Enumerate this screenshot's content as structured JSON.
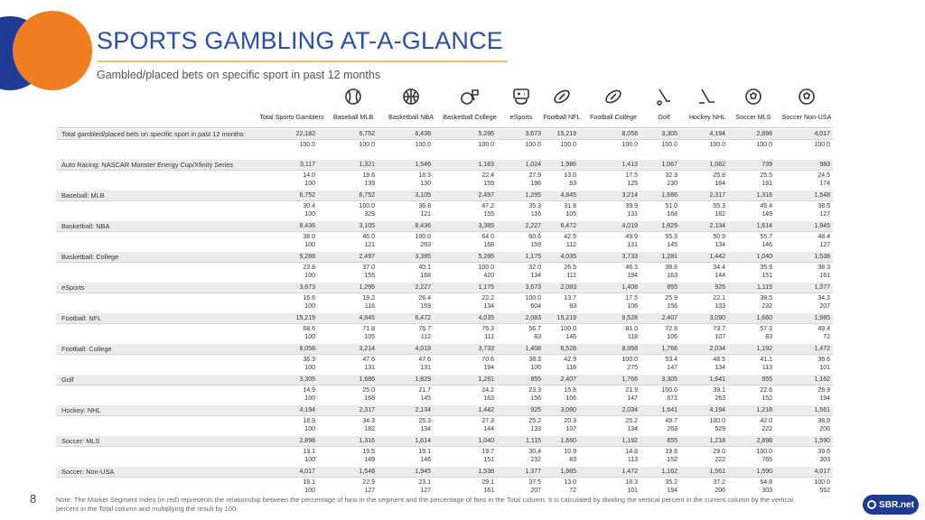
{
  "header": {
    "title": "SPORTS GAMBLING AT-A-GLANCE",
    "subtitle": "Gambled/placed bets on specific sport in past 12 months"
  },
  "columns": [
    {
      "label": "Total Sports Gamblers",
      "icon": ""
    },
    {
      "label": "Baseball MLB",
      "icon": "baseball-icon"
    },
    {
      "label": "Basketball NBA",
      "icon": "basketball-icon"
    },
    {
      "label": "Basketball College",
      "icon": "basketball-hoop-icon"
    },
    {
      "label": "eSports",
      "icon": "esports-controller-icon"
    },
    {
      "label": "Football NFL",
      "icon": "football-icon"
    },
    {
      "label": "Football College",
      "icon": "football-icon"
    },
    {
      "label": "Golf",
      "icon": "golf-icon"
    },
    {
      "label": "Hockey NHL",
      "icon": "hockey-stick-icon"
    },
    {
      "label": "Soccer MLS",
      "icon": "soccer-ball-icon"
    },
    {
      "label": "Soccer Non-USA",
      "icon": "soccer-ball-icon"
    }
  ],
  "rows": [
    {
      "label": "Total gambled/placed bets on specific sport in past 12 months",
      "counts": [
        "22,182",
        "6,752",
        "8,436",
        "5,286",
        "3,673",
        "15,219",
        "8,058",
        "3,305",
        "4,194",
        "2,898",
        "4,017"
      ],
      "pct": [
        "100.0",
        "100.0",
        "100.0",
        "100.0",
        "100.0",
        "100.0",
        "100.0",
        "100.0",
        "100.0",
        "100.0",
        "100.0"
      ],
      "index": []
    },
    {
      "label": "Auto Racing: NASCAR Monster Energy Cup/Xfinity Series",
      "counts": [
        "3,117",
        "1,321",
        "1,546",
        "1,183",
        "1,024",
        "1,986",
        "1,413",
        "1,067",
        "1,082",
        "739",
        "983"
      ],
      "pct": [
        "14.0",
        "19.6",
        "18.3",
        "22.4",
        "27.9",
        "13.0",
        "17.5",
        "32.3",
        "25.8",
        "25.5",
        "24.5"
      ],
      "index": [
        "100",
        "139",
        "130",
        "159",
        "198",
        "93",
        "125",
        "230",
        "184",
        "181",
        "174"
      ]
    },
    {
      "label": "Baseball: MLB",
      "counts": [
        "6,752",
        "6,752",
        "3,105",
        "2,497",
        "1,295",
        "4,845",
        "3,214",
        "1,686",
        "2,317",
        "1,316",
        "1,548"
      ],
      "pct": [
        "30.4",
        "100.0",
        "36.8",
        "47.2",
        "35.3",
        "31.8",
        "39.9",
        "51.0",
        "55.3",
        "45.4",
        "38.5"
      ],
      "index": [
        "100",
        "329",
        "121",
        "155",
        "116",
        "105",
        "131",
        "168",
        "182",
        "149",
        "127"
      ]
    },
    {
      "label": "Basketball: NBA",
      "counts": [
        "8,436",
        "3,105",
        "8,436",
        "3,385",
        "2,227",
        "6,472",
        "4,019",
        "1,829",
        "2,134",
        "1,614",
        "1,945"
      ],
      "pct": [
        "38.0",
        "46.0",
        "100.0",
        "64.0",
        "60.6",
        "42.5",
        "49.9",
        "55.3",
        "50.9",
        "55.7",
        "48.4"
      ],
      "index": [
        "100",
        "121",
        "263",
        "168",
        "159",
        "112",
        "131",
        "145",
        "134",
        "146",
        "127"
      ]
    },
    {
      "label": "Basketball: College",
      "counts": [
        "5,286",
        "2,497",
        "3,385",
        "5,286",
        "1,175",
        "4,035",
        "3,733",
        "1,281",
        "1,442",
        "1,040",
        "1,538"
      ],
      "pct": [
        "23.8",
        "37.0",
        "40.1",
        "100.0",
        "32.0",
        "26.5",
        "46.3",
        "38.8",
        "34.4",
        "35.9",
        "38.3"
      ],
      "index": [
        "100",
        "155",
        "168",
        "420",
        "134",
        "111",
        "194",
        "163",
        "144",
        "151",
        "161"
      ]
    },
    {
      "label": "eSports",
      "counts": [
        "3,673",
        "1,295",
        "2,227",
        "1,175",
        "3,673",
        "2,083",
        "1,408",
        "855",
        "925",
        "1,115",
        "1,377"
      ],
      "pct": [
        "16.6",
        "19.2",
        "26.4",
        "22.2",
        "100.0",
        "13.7",
        "17.5",
        "25.9",
        "22.1",
        "38.5",
        "34.3"
      ],
      "index": [
        "100",
        "116",
        "159",
        "134",
        "604",
        "83",
        "106",
        "156",
        "133",
        "232",
        "207"
      ]
    },
    {
      "label": "Football: NFL",
      "counts": [
        "15,219",
        "4,845",
        "6,472",
        "4,035",
        "2,083",
        "15,219",
        "6,528",
        "2,407",
        "3,090",
        "1,660",
        "1,985"
      ],
      "pct": [
        "68.6",
        "71.8",
        "76.7",
        "76.3",
        "56.7",
        "100.0",
        "81.0",
        "72.8",
        "73.7",
        "57.3",
        "49.4"
      ],
      "index": [
        "100",
        "105",
        "112",
        "111",
        "83",
        "146",
        "118",
        "106",
        "107",
        "83",
        "72"
      ]
    },
    {
      "label": "Football: College",
      "counts": [
        "8,058",
        "3,214",
        "4,019",
        "3,733",
        "1,408",
        "6,528",
        "8,058",
        "1,766",
        "2,034",
        "1,192",
        "1,472"
      ],
      "pct": [
        "36.3",
        "47.6",
        "47.6",
        "70.6",
        "38.3",
        "42.9",
        "100.0",
        "53.4",
        "48.5",
        "41.1",
        "36.6"
      ],
      "index": [
        "100",
        "131",
        "131",
        "194",
        "106",
        "118",
        "275",
        "147",
        "134",
        "113",
        "101"
      ]
    },
    {
      "label": "Golf",
      "counts": [
        "3,305",
        "1,686",
        "1,829",
        "1,281",
        "855",
        "2,407",
        "1,766",
        "3,305",
        "1,641",
        "655",
        "1,162"
      ],
      "pct": [
        "14.9",
        "25.0",
        "21.7",
        "24.2",
        "23.3",
        "15.8",
        "21.9",
        "100.0",
        "39.1",
        "22.6",
        "28.9"
      ],
      "index": [
        "100",
        "168",
        "145",
        "163",
        "156",
        "106",
        "147",
        "671",
        "263",
        "152",
        "194"
      ]
    },
    {
      "label": "Hockey: NHL",
      "counts": [
        "4,194",
        "2,317",
        "2,134",
        "1,442",
        "925",
        "3,090",
        "2,034",
        "1,641",
        "4,194",
        "1,218",
        "1,561"
      ],
      "pct": [
        "18.9",
        "34.3",
        "25.3",
        "27.3",
        "25.2",
        "20.3",
        "25.2",
        "49.7",
        "100.0",
        "42.0",
        "38.9"
      ],
      "index": [
        "100",
        "182",
        "134",
        "144",
        "133",
        "107",
        "134",
        "263",
        "529",
        "222",
        "206"
      ]
    },
    {
      "label": "Soccer: MLS",
      "counts": [
        "2,898",
        "1,316",
        "1,614",
        "1,040",
        "1,115",
        "1,660",
        "1,192",
        "655",
        "1,218",
        "2,898",
        "1,590"
      ],
      "pct": [
        "13.1",
        "19.5",
        "19.1",
        "19.7",
        "30.4",
        "10.9",
        "14.8",
        "19.8",
        "29.0",
        "100.0",
        "39.6"
      ],
      "index": [
        "100",
        "149",
        "146",
        "151",
        "232",
        "83",
        "113",
        "152",
        "222",
        "765",
        "303"
      ]
    },
    {
      "label": "Soccer: Non-USA",
      "counts": [
        "4,017",
        "1,548",
        "1,945",
        "1,538",
        "1,377",
        "1,985",
        "1,472",
        "1,162",
        "1,561",
        "1,590",
        "4,017"
      ],
      "pct": [
        "18.1",
        "22.9",
        "23.1",
        "29.1",
        "37.5",
        "13.0",
        "18.3",
        "35.2",
        "37.2",
        "54.8",
        "100.0"
      ],
      "index": [
        "100",
        "127",
        "127",
        "161",
        "207",
        "72",
        "101",
        "194",
        "206",
        "303",
        "552"
      ]
    }
  ],
  "footer": {
    "page_number": "8",
    "note": "Note: The Market Segment Index (in red) represents the relationship between the percentage of fans in the segment and the percentage of fans in the Total column. It is calculated by dividing the vertical percent in the current column by the vertical percent in the Total column and multiplying the result by 100.",
    "logo_text": "SBR.net"
  },
  "colors": {
    "title": "#2c4ea3",
    "accent_orange": "#ef7d22",
    "accent_blue": "#1f3a93",
    "row_shade": "#ececec"
  }
}
